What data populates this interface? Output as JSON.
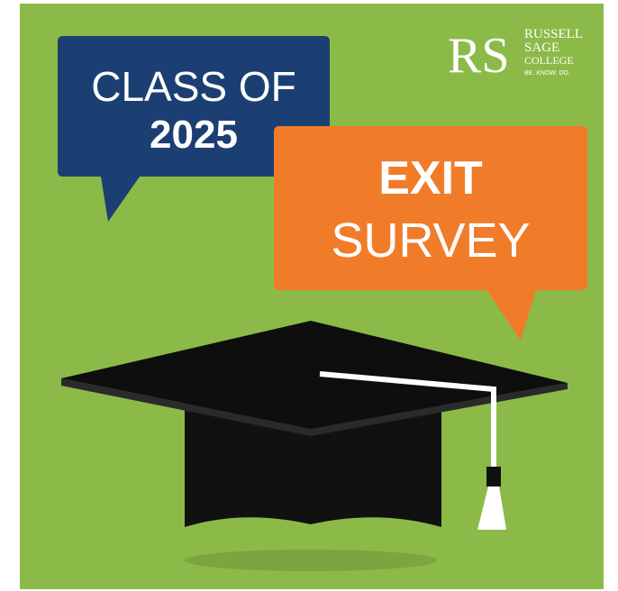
{
  "bubble_left": {
    "line1": "CLASS OF",
    "line2": "2025"
  },
  "bubble_right": {
    "line1": "EXIT",
    "line2": "SURVEY"
  },
  "logo": {
    "monogram": "RS",
    "name1": "RUSSELL",
    "name2": "SAGE",
    "name3": "COLLEGE",
    "tagline": "BE. KNOW. DO."
  }
}
